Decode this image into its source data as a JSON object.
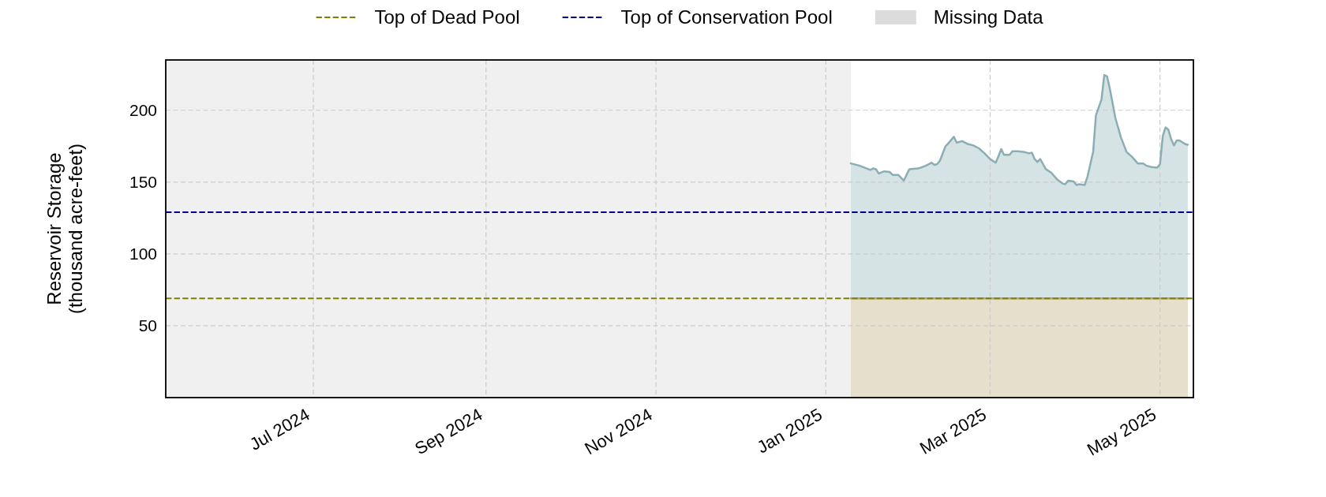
{
  "chart_data": {
    "type": "area",
    "ylabel": "Reservoir Storage\n(thousand acre-feet)",
    "series": [
      {
        "color": "#8aaeb4",
        "x": [
          "2025-01-10",
          "2025-01-13",
          "2025-01-15",
          "2025-01-17",
          "2025-01-18",
          "2025-01-19",
          "2025-01-20",
          "2025-01-22",
          "2025-01-24",
          "2025-01-25",
          "2025-01-27",
          "2025-01-29",
          "2025-01-31",
          "2025-02-03",
          "2025-02-04",
          "2025-02-06",
          "2025-02-07",
          "2025-02-08",
          "2025-02-09",
          "2025-02-10",
          "2025-02-11",
          "2025-02-13",
          "2025-02-14",
          "2025-02-16",
          "2025-02-17",
          "2025-02-19",
          "2025-02-21",
          "2025-02-23",
          "2025-02-25",
          "2025-02-27",
          "2025-03-01",
          "2025-03-03",
          "2025-03-04",
          "2025-03-05",
          "2025-03-06",
          "2025-03-08",
          "2025-03-09",
          "2025-03-11",
          "2025-03-13",
          "2025-03-15",
          "2025-03-16",
          "2025-03-17",
          "2025-03-18",
          "2025-03-19",
          "2025-03-21",
          "2025-03-23",
          "2025-03-25",
          "2025-03-27",
          "2025-03-28",
          "2025-03-29",
          "2025-03-31",
          "2025-04-01",
          "2025-04-02",
          "2025-04-04",
          "2025-04-05",
          "2025-04-07",
          "2025-04-08",
          "2025-04-10",
          "2025-04-11",
          "2025-04-12",
          "2025-04-13",
          "2025-04-15",
          "2025-04-17",
          "2025-04-19",
          "2025-04-21",
          "2025-04-23",
          "2025-04-25",
          "2025-04-26",
          "2025-04-28",
          "2025-04-30",
          "2025-05-01",
          "2025-05-02",
          "2025-05-03",
          "2025-05-04",
          "2025-05-05",
          "2025-05-06",
          "2025-05-07",
          "2025-05-08",
          "2025-05-10",
          "2025-05-11"
        ],
        "values": [
          163,
          161.5,
          160,
          158.5,
          159.5,
          159,
          156,
          157.5,
          157,
          155,
          155,
          151,
          159,
          159.5,
          160,
          161.5,
          162.5,
          163.5,
          162,
          162.5,
          165,
          175,
          177,
          181.5,
          177.5,
          178.5,
          176.5,
          175.5,
          173.5,
          170,
          166,
          163.5,
          168,
          173,
          169,
          169,
          171.5,
          171.5,
          171,
          170,
          170.5,
          166,
          164,
          166,
          159,
          156.5,
          152,
          149,
          148.5,
          151,
          150.5,
          148,
          148.5,
          148,
          154,
          171,
          196.5,
          207.5,
          224.5,
          223.5,
          215,
          194.5,
          181,
          171,
          167.5,
          163,
          163,
          161.5,
          160.5,
          160,
          162.5,
          182,
          188,
          186.5,
          180,
          175.5,
          179,
          179,
          176.5,
          176
        ]
      },
      {
        "color": "#b5a46d",
        "x": [
          "2025-01-10",
          "2025-05-11"
        ],
        "values": [
          69,
          69
        ]
      }
    ],
    "xlim": [
      "2024-05-09",
      "2025-05-13"
    ],
    "xticks": [
      {
        "value": "2024-07-01",
        "label": "Jul 2024"
      },
      {
        "value": "2024-09-01",
        "label": "Sep 2024"
      },
      {
        "value": "2024-11-01",
        "label": "Nov 2024"
      },
      {
        "value": "2025-01-01",
        "label": "Jan 2025"
      },
      {
        "value": "2025-03-01",
        "label": "Mar 2025"
      },
      {
        "value": "2025-05-01",
        "label": "May 2025"
      }
    ],
    "ylim": [
      0,
      235
    ],
    "yticks": [
      50,
      100,
      150,
      200
    ],
    "grid": true,
    "legend": "top",
    "ref_lines": [
      {
        "axis": "y",
        "value": 69,
        "label": "Top of Dead Pool",
        "color": "#808000",
        "line_style": "dashed"
      },
      {
        "axis": "y",
        "value": 129,
        "label": "Top of Conservation Pool",
        "color": "#00008b",
        "line_style": "dashed"
      }
    ],
    "bands": [
      {
        "axis": "x",
        "from": "2024-05-09",
        "to": "2025-01-10",
        "label": "Missing Data",
        "color": "#dcdcdc"
      }
    ]
  }
}
